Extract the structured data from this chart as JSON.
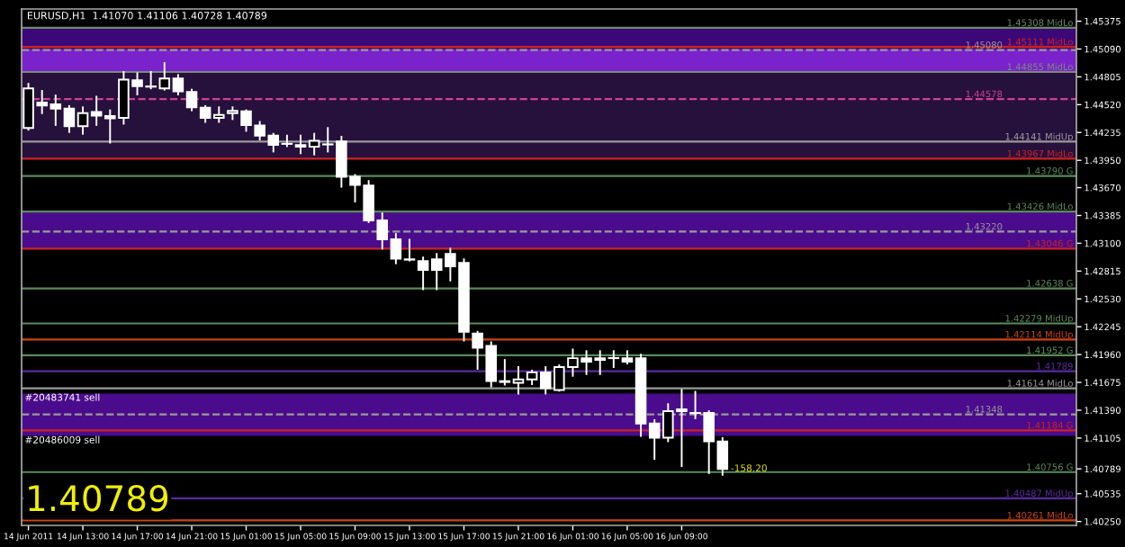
{
  "chart_data": {
    "type": "candlestick",
    "title": "EURUSD,H1  1.41070 1.41106 1.40728 1.40789",
    "color": "#ffffff",
    "x": [
      "2011-06-14T09:00",
      "2011-06-14T10:00",
      "2011-06-14T11:00",
      "2011-06-14T12:00",
      "2011-06-14T13:00",
      "2011-06-14T14:00",
      "2011-06-14T15:00",
      "2011-06-14T16:00",
      "2011-06-14T17:00",
      "2011-06-14T18:00",
      "2011-06-14T19:00",
      "2011-06-14T20:00",
      "2011-06-14T21:00",
      "2011-06-14T22:00",
      "2011-06-14T23:00",
      "2011-06-15T00:00",
      "2011-06-15T01:00",
      "2011-06-15T02:00",
      "2011-06-15T03:00",
      "2011-06-15T04:00",
      "2011-06-15T05:00",
      "2011-06-15T06:00",
      "2011-06-15T07:00",
      "2011-06-15T08:00",
      "2011-06-15T09:00",
      "2011-06-15T10:00",
      "2011-06-15T11:00",
      "2011-06-15T12:00",
      "2011-06-15T13:00",
      "2011-06-15T14:00",
      "2011-06-15T15:00",
      "2011-06-15T16:00",
      "2011-06-15T17:00",
      "2011-06-15T18:00",
      "2011-06-15T19:00",
      "2011-06-15T20:00",
      "2011-06-15T21:00",
      "2011-06-15T22:00",
      "2011-06-15T23:00",
      "2011-06-16T00:00",
      "2011-06-16T01:00",
      "2011-06-16T02:00",
      "2011-06-16T03:00",
      "2011-06-16T04:00",
      "2011-06-16T05:00",
      "2011-06-16T06:00",
      "2011-06-16T07:00",
      "2011-06-16T08:00",
      "2011-06-16T09:00",
      "2011-06-16T10:00",
      "2011-06-16T11:00",
      "2011-06-16T12:00"
    ],
    "xlim": [
      "2011-06-14T08:30",
      "2011-06-17T14:00"
    ],
    "xticks": [
      {
        "value": "2011-06-14T09:00",
        "label": "14 Jun 2011"
      },
      {
        "value": "2011-06-14T13:00",
        "label": "14 Jun 13:00"
      },
      {
        "value": "2011-06-14T17:00",
        "label": "14 Jun 17:00"
      },
      {
        "value": "2011-06-14T21:00",
        "label": "14 Jun 21:00"
      },
      {
        "value": "2011-06-15T01:00",
        "label": "15 Jun 01:00"
      },
      {
        "value": "2011-06-15T05:00",
        "label": "15 Jun 05:00"
      },
      {
        "value": "2011-06-15T09:00",
        "label": "15 Jun 09:00"
      },
      {
        "value": "2011-06-15T13:00",
        "label": "15 Jun 13:00"
      },
      {
        "value": "2011-06-15T17:00",
        "label": "15 Jun 17:00"
      },
      {
        "value": "2011-06-15T21:00",
        "label": "15 Jun 21:00"
      },
      {
        "value": "2011-06-16T01:00",
        "label": "16 Jun 01:00"
      },
      {
        "value": "2011-06-16T05:00",
        "label": "16 Jun 05:00"
      },
      {
        "value": "2011-06-16T09:00",
        "label": "16 Jun 09:00"
      }
    ],
    "ohlc": [
      [
        1.44281,
        1.44734,
        1.44263,
        1.44687
      ],
      [
        1.44542,
        1.44661,
        1.44433,
        1.44511
      ],
      [
        1.44524,
        1.44614,
        1.44312,
        1.4448
      ],
      [
        1.4448,
        1.44506,
        1.4424,
        1.44299
      ],
      [
        1.44299,
        1.44493,
        1.44222,
        1.44433
      ],
      [
        1.44444,
        1.44602,
        1.44312,
        1.44408
      ],
      [
        1.44403,
        1.44462,
        1.44131,
        1.44379
      ],
      [
        1.44384,
        1.44855,
        1.44325,
        1.44777
      ],
      [
        1.4477,
        1.44842,
        1.44625,
        1.4471
      ],
      [
        1.44707,
        1.44855,
        1.44687,
        1.44704
      ],
      [
        1.44687,
        1.44946,
        1.44674,
        1.44788
      ],
      [
        1.44788,
        1.44824,
        1.44625,
        1.44656
      ],
      [
        1.4465,
        1.44674,
        1.44462,
        1.44493
      ],
      [
        1.44488,
        1.44506,
        1.44343,
        1.44384
      ],
      [
        1.44384,
        1.44493,
        1.44343,
        1.44415
      ],
      [
        1.44433,
        1.44493,
        1.44372,
        1.44457
      ],
      [
        1.44451,
        1.44462,
        1.44252,
        1.44312
      ],
      [
        1.44306,
        1.44343,
        1.44162,
        1.44203
      ],
      [
        1.44203,
        1.44222,
        1.4404,
        1.44107
      ],
      [
        1.4412,
        1.44203,
        1.44095,
        1.44118
      ],
      [
        1.44107,
        1.44203,
        1.44023,
        1.44089
      ],
      [
        1.44089,
        1.44222,
        1.4401,
        1.44149
      ],
      [
        1.44114,
        1.44281,
        1.4404,
        1.44112
      ],
      [
        1.44143,
        1.44191,
        1.43679,
        1.43782
      ],
      [
        1.43782,
        1.438,
        1.43528,
        1.43697
      ],
      [
        1.43691,
        1.43738,
        1.43317,
        1.43335
      ],
      [
        1.43335,
        1.43407,
        1.43045,
        1.43141
      ],
      [
        1.43141,
        1.43195,
        1.42895,
        1.42942
      ],
      [
        1.42936,
        1.43136,
        1.42924,
        1.42932
      ],
      [
        1.42918,
        1.42955,
        1.42629,
        1.42828
      ],
      [
        1.42937,
        1.42991,
        1.42629,
        1.42828
      ],
      [
        1.42991,
        1.43045,
        1.42719,
        1.42864
      ],
      [
        1.429,
        1.42936,
        1.42104,
        1.42194
      ],
      [
        1.42176,
        1.42194,
        1.41814,
        1.42031
      ],
      [
        1.42049,
        1.42086,
        1.41633,
        1.41688
      ],
      [
        1.41688,
        1.41905,
        1.41652,
        1.41679
      ],
      [
        1.4167,
        1.41832,
        1.41561,
        1.41706
      ],
      [
        1.41706,
        1.41796,
        1.41657,
        1.41778
      ],
      [
        1.41778,
        1.41832,
        1.41561,
        1.41615
      ],
      [
        1.41597,
        1.4185,
        1.4159,
        1.41832
      ],
      [
        1.41832,
        1.42013,
        1.41742,
        1.41923
      ],
      [
        1.41923,
        1.41995,
        1.4176,
        1.41887
      ],
      [
        1.41923,
        1.41995,
        1.4176,
        1.41905
      ],
      [
        1.41925,
        1.41995,
        1.41832,
        1.41923
      ],
      [
        1.41923,
        1.41995,
        1.41868,
        1.41887
      ],
      [
        1.41923,
        1.41959,
        1.41126,
        1.41253
      ],
      [
        1.41253,
        1.41289,
        1.40891,
        1.41108
      ],
      [
        1.41108,
        1.41452,
        1.41072,
        1.4138
      ],
      [
        1.41398,
        1.41597,
        1.40818,
        1.4138
      ],
      [
        1.41362,
        1.41579,
        1.41308,
        1.4136
      ],
      [
        1.41362,
        1.4138,
        1.40746,
        1.41072
      ],
      [
        1.4107,
        1.41106,
        1.40728,
        1.40789
      ]
    ],
    "ylim": [
      1.4021,
      1.455
    ],
    "yticks": [
      {
        "value": 1.4025,
        "label": "1.40250"
      },
      {
        "value": 1.40535,
        "label": "1.40535"
      },
      {
        "value": 1.40789,
        "label": "1.40789"
      },
      {
        "value": 1.41105,
        "label": "1.41105"
      },
      {
        "value": 1.4139,
        "label": "1.41390"
      },
      {
        "value": 1.41675,
        "label": "1.41675"
      },
      {
        "value": 1.4196,
        "label": "1.41960"
      },
      {
        "value": 1.42245,
        "label": "1.42245"
      },
      {
        "value": 1.4253,
        "label": "1.42530"
      },
      {
        "value": 1.42815,
        "label": "1.42815"
      },
      {
        "value": 1.431,
        "label": "1.43100"
      },
      {
        "value": 1.43385,
        "label": "1.43385"
      },
      {
        "value": 1.4367,
        "label": "1.43670"
      },
      {
        "value": 1.4395,
        "label": "1.43950"
      },
      {
        "value": 1.44235,
        "label": "1.44235"
      },
      {
        "value": 1.4452,
        "label": "1.44520"
      },
      {
        "value": 1.44805,
        "label": "1.44805"
      },
      {
        "value": 1.4509,
        "label": "1.45090"
      },
      {
        "value": 1.45375,
        "label": "1.45375"
      }
    ],
    "grid": false,
    "bands": [
      {
        "axis": "y",
        "from": 1.45091,
        "to": 1.45308,
        "color": "#3c0878"
      },
      {
        "axis": "y",
        "from": 1.44855,
        "to": 1.45091,
        "color": "#7a22cc"
      },
      {
        "axis": "y",
        "from": 1.43968,
        "to": 1.44855,
        "color": "#26103c"
      },
      {
        "axis": "y",
        "from": 1.43045,
        "to": 1.43426,
        "color": "#4a0c8c"
      },
      {
        "axis": "y",
        "from": 1.41126,
        "to": 1.41561,
        "color": "#4a0c8c"
      }
    ],
    "ref_lines": [
      {
        "axis": "y",
        "value": 1.45308,
        "label": "1.45308 MidLo",
        "color": "#6a8a6a",
        "line_style": "solid"
      },
      {
        "axis": "y",
        "value": 1.45111,
        "label": "1.45111 MidLo",
        "color": "#cc2222",
        "line_style": "solid"
      },
      {
        "axis": "y",
        "value": 1.4508,
        "label": "1.45080",
        "color": "#9a9a9a",
        "line_style": "dashed"
      },
      {
        "axis": "y",
        "value": 1.44855,
        "label": "1.44855 MidLo",
        "color": "#7a8a7a",
        "line_style": "solid"
      },
      {
        "axis": "y",
        "value": 1.44578,
        "label": "1.44578",
        "color": "#d04090",
        "line_style": "dashed"
      },
      {
        "axis": "y",
        "value": 1.44141,
        "label": "1.44141 MidUp",
        "color": "#9a9a9a",
        "line_style": "solid"
      },
      {
        "axis": "y",
        "value": 1.43967,
        "label": "1.43967 MidLo",
        "color": "#cc2222",
        "line_style": "solid"
      },
      {
        "axis": "y",
        "value": 1.4379,
        "label": "1.43790 G",
        "color": "#5a8a5a",
        "line_style": "solid"
      },
      {
        "axis": "y",
        "value": 1.43426,
        "label": "1.43426 MidLo",
        "color": "#5a8a5a",
        "line_style": "solid"
      },
      {
        "axis": "y",
        "value": 1.4322,
        "label": "1.43220",
        "color": "#9a9a9a",
        "line_style": "dashed"
      },
      {
        "axis": "y",
        "value": 1.43046,
        "label": "1.43046 G",
        "color": "#cc2222",
        "line_style": "solid"
      },
      {
        "axis": "y",
        "value": 1.42638,
        "label": "1.42638 G",
        "color": "#5a8a5a",
        "line_style": "solid"
      },
      {
        "axis": "y",
        "value": 1.42279,
        "label": "1.42279 MidUp",
        "color": "#5a8a5a",
        "line_style": "solid"
      },
      {
        "axis": "y",
        "value": 1.42114,
        "label": "1.42114 MidUp",
        "color": "#cc4411",
        "line_style": "solid"
      },
      {
        "axis": "y",
        "value": 1.41952,
        "label": "1.41952 G",
        "color": "#5a8a5a",
        "line_style": "solid"
      },
      {
        "axis": "y",
        "value": 1.41789,
        "label": "1.41789",
        "color": "#5a2aa0",
        "line_style": "solid"
      },
      {
        "axis": "y",
        "value": 1.41614,
        "label": "1.41614 MidLo",
        "color": "#9a9a9a",
        "line_style": "solid"
      },
      {
        "axis": "y",
        "value": 1.41348,
        "label": "1.41348",
        "color": "#9a9a9a",
        "line_style": "dashed"
      },
      {
        "axis": "y",
        "value": 1.41184,
        "label": "1.41184 G",
        "color": "#cc2222",
        "line_style": "solid"
      },
      {
        "axis": "y",
        "value": 1.40756,
        "label": "1.40756 G",
        "color": "#5a8a5a",
        "line_style": "solid"
      },
      {
        "axis": "y",
        "value": 1.40487,
        "label": "1.40487 MidUp",
        "color": "#5a2aa0",
        "line_style": "solid"
      },
      {
        "axis": "y",
        "value": 1.40261,
        "label": "1.40261 MidLo",
        "color": "#cc4411",
        "line_style": "solid"
      }
    ],
    "annotations": [
      {
        "text": "#20483741 sell",
        "y": 1.41561
      },
      {
        "text": "#20486009 sell",
        "y": 1.41126
      },
      {
        "text": "-158.20",
        "y": 1.40789
      },
      "1.40789"
    ]
  }
}
